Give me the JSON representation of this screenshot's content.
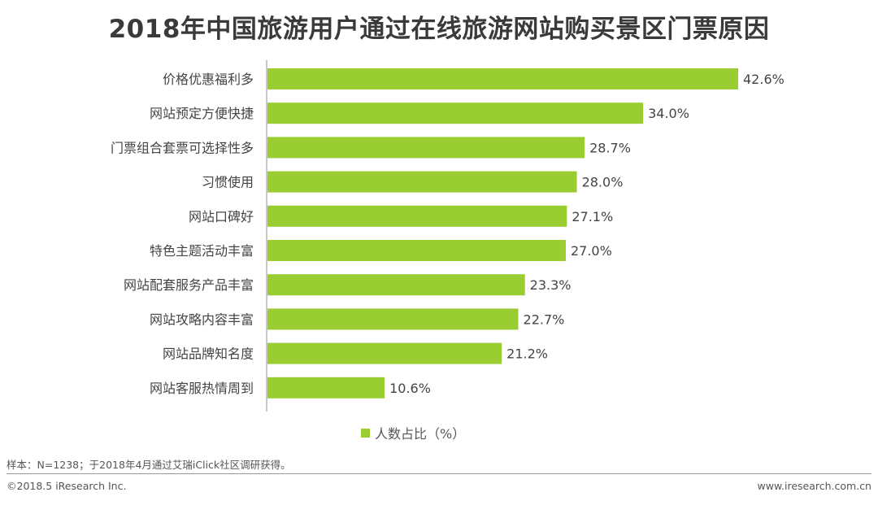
{
  "chart_data": {
    "type": "bar",
    "orientation": "horizontal",
    "title": "2018年中国旅游用户通过在线旅游网站购买景区门票原因",
    "categories": [
      "价格优惠福利多",
      "网站预定方便快捷",
      "门票组合套票可选择性多",
      "习惯使用",
      "网站口碑好",
      "特色主题活动丰富",
      "网站配套服务产品丰富",
      "网站攻略内容丰富",
      "网站品牌知名度",
      "网站客服热情周到"
    ],
    "series": [
      {
        "name": "人数占比（%）",
        "values": [
          42.6,
          34.0,
          28.7,
          28.0,
          27.1,
          27.0,
          23.3,
          22.7,
          21.2,
          10.6
        ]
      }
    ],
    "data_labels": [
      "42.6%",
      "34.0%",
      "28.7%",
      "28.0%",
      "27.1%",
      "27.0%",
      "23.3%",
      "22.7%",
      "21.2%",
      "10.6%"
    ],
    "xlim": [
      0,
      42.6
    ],
    "bar_color": "#9ACD32",
    "legend_position": "bottom",
    "grid": false
  },
  "footer": {
    "note": "样本：N=1238；于2018年4月通过艾瑞iClick社区调研获得。",
    "copyright": "©2018.5 iResearch Inc.",
    "website": "www.iresearch.com.cn"
  }
}
